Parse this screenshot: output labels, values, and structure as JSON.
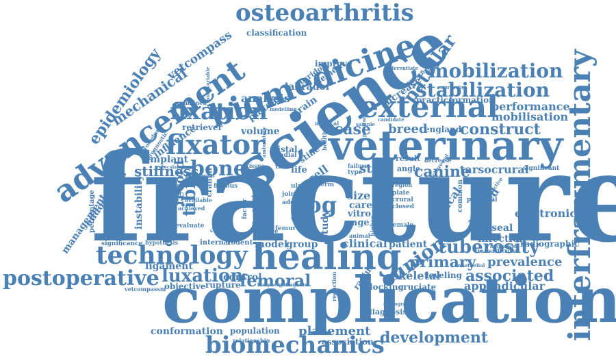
{
  "accent_color": "#4a80b4",
  "words": {
    "fracture": "fracture",
    "complication": "complication",
    "veterinary": "veterinary",
    "science": "science",
    "healing": "healing",
    "biomedicine": "biomedicine",
    "advancement": "advancement",
    "interfragmentary": "interfragmentary",
    "osteoarthritis": "osteoarthritis",
    "external": "external",
    "fixation": "fixation",
    "fixator": "fixator",
    "mobilization": "mobilization",
    "stabilization": "stabilization",
    "technology": "technology",
    "postoperative": "postoperative",
    "biomechanics": "biomechanics",
    "epidemiology": "epidemiology",
    "mechanical": "mechanical",
    "bone": "bone",
    "dog": "dog",
    "tuberosity": "tuberosity",
    "union": "union",
    "construct": "construct",
    "performance": "performance",
    "mobilisation": "mobilisation",
    "primary": "primary",
    "prevalence": "prevalence",
    "associated": "associated",
    "appendicular": "appendicular",
    "development": "development",
    "femoral": "femoral",
    "luxation": "luxation",
    "tibial": "tibial",
    "stiffness": "stiffness",
    "implant": "implant",
    "canine": "canine",
    "patellar": "patellar",
    "case": "case",
    "breed": "breed",
    "analysis": "analysis",
    "vetcompass": "vetcompass",
    "classification": "classification",
    "endogenous": "endogenous",
    "management": "management",
    "conformation": "conformation",
    "population": "population",
    "placement": "placement",
    "association": "association",
    "electronic": "electronic",
    "tarsocrural": "tarsocrural",
    "delayed": "delayed",
    "skeletal": "skeletal",
    "clinical": "clinical",
    "model": "model",
    "group": "group",
    "patient": "patient",
    "infection": "infection",
    "radiographic": "radiographic",
    "volume": "volume",
    "control": "control",
    "rupture": "rupture",
    "objective": "objective",
    "ligament": "ligament",
    "duration": "duration",
    "record": "record",
    "instability": "instability",
    "influence": "influence",
    "retriever": "retriever",
    "plateau": "plateau",
    "strain": "strain",
    "labrador": "labrador",
    "improve": "improve",
    "increase": "increase",
    "element": "element",
    "corridor": "corridor",
    "practice": "practice",
    "formation": "formation",
    "england": "england",
    "stem": "stem",
    "cell": "cell",
    "life": "life",
    "size": "size",
    "care": "care",
    "vitro": "vitro",
    "cage": "cage",
    "vegf": "vegf",
    "study": "study",
    "surgical": "surgical",
    "physeal": "physeal",
    "leveling": "leveling",
    "cruciate": "cruciate",
    "locking": "locking",
    "diagnosis": "diagnosis",
    "radius": "radius",
    "distal": "distal",
    "stifle": "stifle",
    "result": "result",
    "angle": "angle",
    "significance": "significance",
    "internal": "internal",
    "rodent": "rodent",
    "hypothesis": "hypothesis",
    "vetcompassm": "vetcompassm",
    "relationship": "relationship",
    "significant": "significant",
    "transarticular": "transarticular",
    "proximal": "proximal",
    "percentage": "percentage",
    "deficient": "deficient",
    "evaluate": "evaluate",
    "cranial": "cranial",
    "fibrous": "fibrous",
    "ulna": "ulna",
    "joint": "joint",
    "add": "add",
    "plate": "plate",
    "crural": "crural",
    "closed": "closed",
    "female": "female",
    "region": "region",
    "term": "term",
    "risk": "risk",
    "type": "type",
    "open": "open",
    "radial": "radial",
    "week": "week",
    "combined": "combined",
    "weight": "weight",
    "bodyweight": "bodyweight",
    "radiograph": "radiograph",
    "standard": "standard",
    "achieved": "achieved",
    "available": "available",
    "procedure": "procedure",
    "prognostic": "prognostic",
    "multivariable": "multivariable",
    "decrease": "decrease",
    "common": "common",
    "number": "number",
    "animal": "animal",
    "device": "device",
    "reduction": "reduction",
    "higher": "higher",
    "underwent": "underwent",
    "tissue": "tissue",
    "time": "time",
    "failure": "failure",
    "healthy": "healthy",
    "endothelial": "endothelial",
    "migration": "migration",
    "expression": "expression",
    "superficial": "superficial",
    "differentiate": "differentiate",
    "progenitor": "progenitor",
    "factor": "factor",
    "effect": "effect",
    "femur": "femur",
    "complete": "complete",
    "limited": "limited",
    "potential": "potential",
    "antagonist": "antagonist",
    "medical": "medical",
    "candidate": "candidate",
    "modelling": "modelling",
    "background": "background",
    "retrospective": "retrospective",
    "trabecular": "trabecular",
    "ambulatory": "ambulatory",
    "programme": "programme",
    "sample": "sample",
    "indication": "indication"
  }
}
